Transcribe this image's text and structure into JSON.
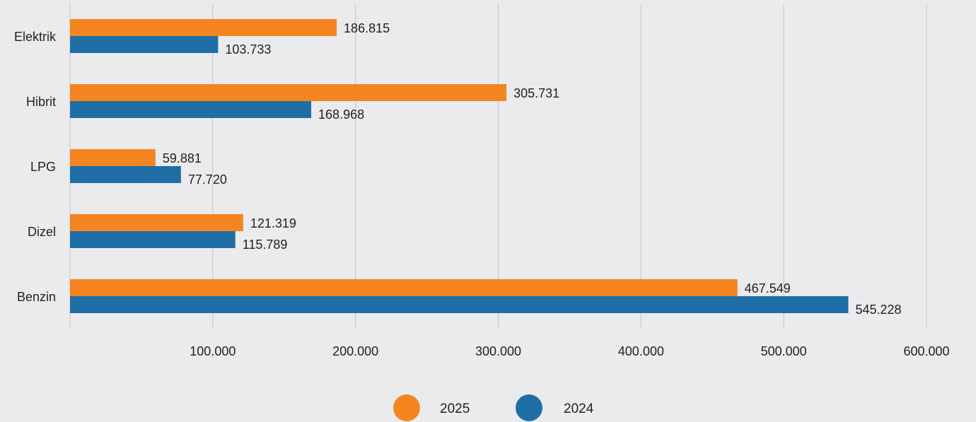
{
  "chart_data": {
    "type": "bar",
    "orientation": "horizontal",
    "categories": [
      "Elektrik",
      "Hibrit",
      "LPG",
      "Dizel",
      "Benzin"
    ],
    "series": [
      {
        "name": "2025",
        "color": "#f58520",
        "values": [
          186815,
          305731,
          59881,
          121319,
          467549
        ],
        "labels": [
          "186.815",
          "305.731",
          "59.881",
          "121.319",
          "467.549"
        ]
      },
      {
        "name": "2024",
        "color": "#1f6fa6",
        "values": [
          103733,
          168968,
          77720,
          115789,
          545228
        ],
        "labels": [
          "103.733",
          "168.968",
          "77.720",
          "115.789",
          "545.228"
        ]
      }
    ],
    "xlim": [
      0,
      600000
    ],
    "x_ticks": [
      100000,
      200000,
      300000,
      400000,
      500000,
      600000
    ],
    "x_tick_labels": [
      "100.000",
      "200.000",
      "300.000",
      "400.000",
      "500.000",
      "600.000"
    ],
    "grid": true,
    "legend_position": "bottom"
  }
}
